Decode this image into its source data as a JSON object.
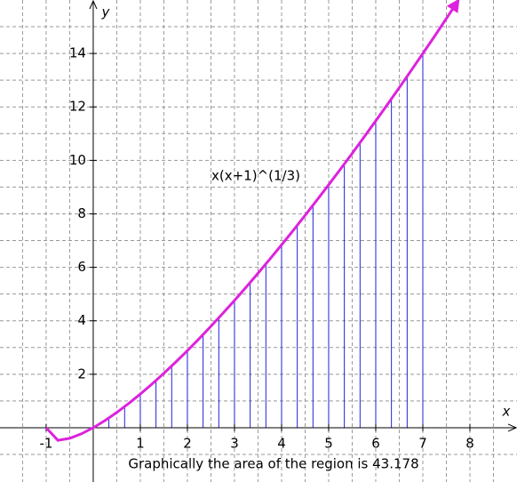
{
  "chart_data": {
    "type": "function",
    "xlabel": "x",
    "ylabel": "y",
    "xlim": [
      -1.98,
      9
    ],
    "ylim": [
      -2.03,
      16
    ],
    "xticks": [
      -1,
      1,
      2,
      3,
      4,
      5,
      6,
      7,
      8
    ],
    "yticks": [
      2,
      4,
      6,
      8,
      10,
      12,
      14
    ],
    "xgrid": [
      -1.5,
      -1,
      -0.5,
      0.5,
      1,
      1.5,
      2,
      2.5,
      3,
      3.5,
      4,
      4.5,
      5,
      5.5,
      6,
      6.5,
      7,
      7.5,
      8,
      8.5
    ],
    "ygrid": [
      -1,
      1,
      2,
      3,
      4,
      5,
      6,
      7,
      8,
      9,
      10,
      11,
      12,
      13,
      14,
      15
    ],
    "series": [
      {
        "name": "x(x+1)^(1/3)",
        "color": "#dd22dd",
        "x": [
          -1,
          -0.75,
          -0.5,
          -0.25,
          0,
          0.25,
          0.5,
          0.75,
          1,
          1.25,
          1.5,
          1.75,
          2,
          2.25,
          2.5,
          2.75,
          3,
          3.25,
          3.5,
          3.75,
          4,
          4.25,
          4.5,
          4.75,
          5,
          5.25,
          5.5,
          5.75,
          6,
          6.25,
          6.5,
          6.75,
          7,
          7.25,
          7.5,
          7.75
        ],
        "values": [
          0,
          -0.472,
          -0.397,
          -0.227,
          0,
          0.269,
          0.572,
          0.904,
          1.26,
          1.638,
          2.036,
          2.452,
          2.884,
          3.332,
          3.795,
          4.273,
          4.762,
          5.265,
          5.778,
          6.304,
          6.84,
          7.387,
          7.943,
          8.512,
          9.086,
          9.671,
          10.263,
          10.868,
          11.478,
          12.094,
          12.721,
          13.358,
          14,
          14.645,
          15.308,
          15.973
        ]
      }
    ],
    "strips": {
      "color": "#2222dd",
      "x": [
        0.333,
        0.667,
        1,
        1.333,
        1.667,
        2,
        2.333,
        2.667,
        3,
        3.333,
        3.667,
        4,
        4.333,
        4.667,
        5,
        5.333,
        5.667,
        6,
        6.333,
        6.667,
        7
      ],
      "values": [
        0.367,
        0.79,
        1.26,
        1.769,
        2.311,
        2.884,
        3.486,
        4.112,
        4.762,
        5.434,
        6.127,
        6.84,
        7.571,
        8.321,
        9.086,
        9.868,
        10.665,
        11.478,
        12.304,
        13.144,
        14
      ]
    },
    "note": "Graphically the area of the region is 43.178"
  }
}
